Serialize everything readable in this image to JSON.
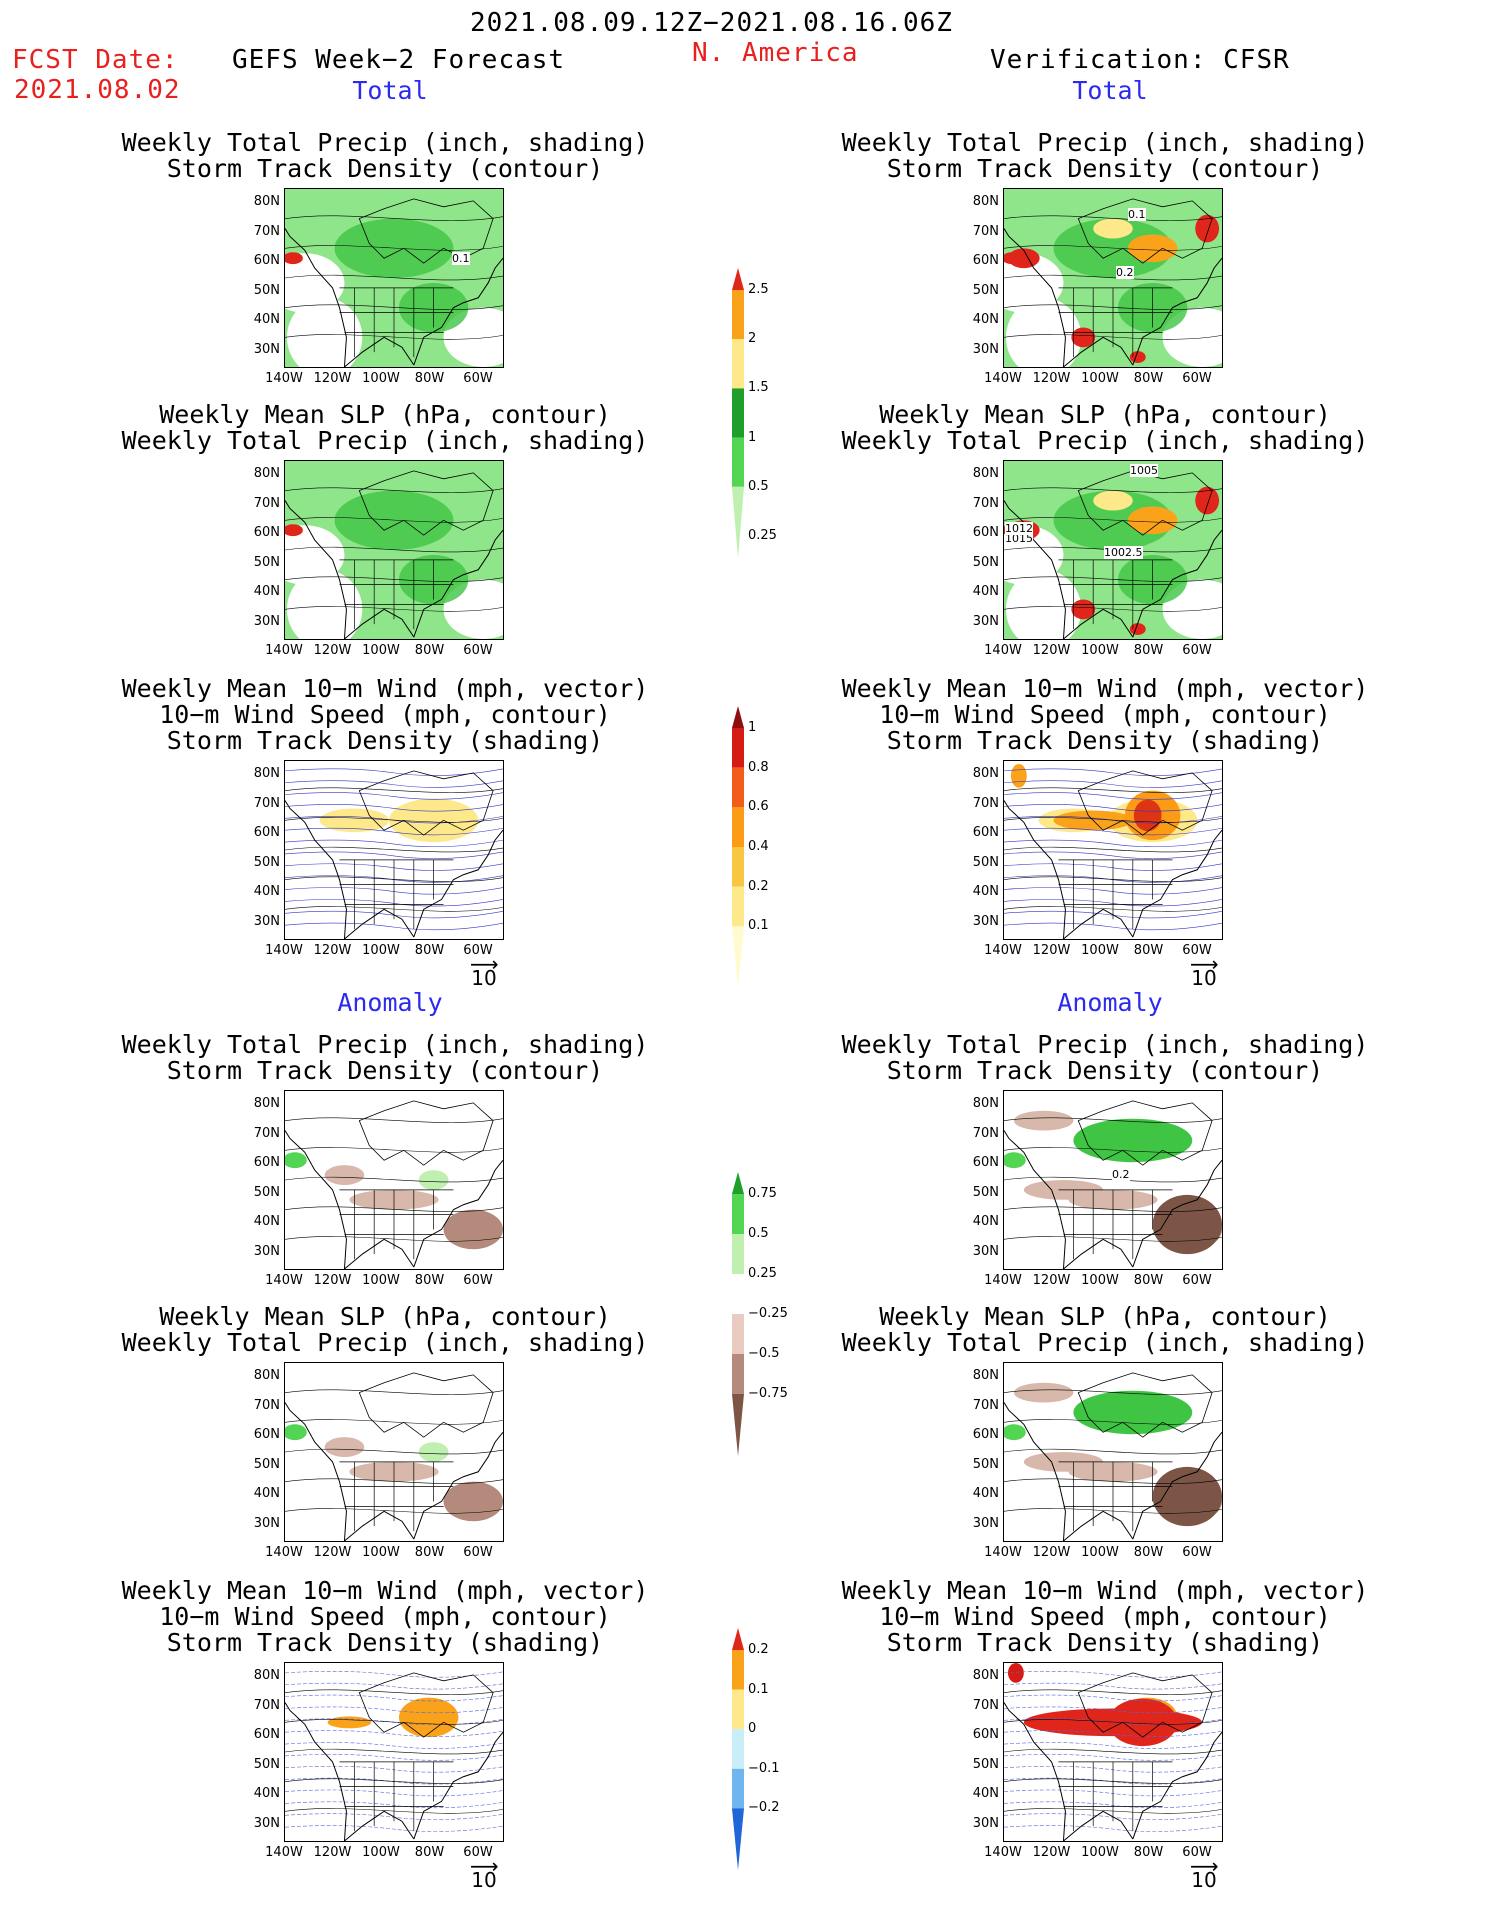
{
  "header": {
    "period": "2021.08.09.12Z−2021.08.16.06Z",
    "fcst_label": "FCST Date:",
    "fcst_date": "2021.08.02",
    "model": "GEFS Week−2 Forecast",
    "region": "N. America",
    "verification": "Verification: CFSR"
  },
  "sections": {
    "total": "Total",
    "anomaly": "Anomaly"
  },
  "titles": {
    "precip_track": "Weekly Total Precip (inch, shading)\nStorm Track Density (contour)",
    "slp_precip": "Weekly Mean SLP (hPa, contour)\nWeekly Total Precip (inch, shading)",
    "wind_track": "Weekly Mean 10−m Wind (mph, vector)\n10−m Wind Speed (mph, contour)\nStorm Track Density (shading)"
  },
  "axes": {
    "lat": [
      "80N",
      "70N",
      "60N",
      "50N",
      "40N",
      "30N"
    ],
    "lon": [
      "140W",
      "120W",
      "100W",
      "80W",
      "60W"
    ]
  },
  "vector_ref": "10",
  "map_labels": {
    "fcst_track": "0.1",
    "ver_track_a": "0.1",
    "ver_track_b": "0.2",
    "ver_slp_a": "1005",
    "ver_slp_b": "1002.5",
    "ver_slp_c": "1015",
    "ver_slp_d": "1012",
    "anom_track": "0.2"
  },
  "colorbars": {
    "precip_total": {
      "labels": [
        "2.5",
        "2",
        "1.5",
        "1",
        "0.5",
        "0.25"
      ],
      "colors": [
        "#e0251a",
        "#f9a21a",
        "#fde98a",
        "#1f9e2a",
        "#52d552",
        "#bff0b0"
      ]
    },
    "track_total": {
      "labels": [
        "1",
        "0.8",
        "0.6",
        "0.4",
        "0.2",
        "0.1"
      ],
      "colors": [
        "#8e0d10",
        "#d61a14",
        "#f25d1a",
        "#fb9b16",
        "#f8c640",
        "#fde98a",
        "#fffbd0"
      ]
    },
    "precip_anom": {
      "labels": [
        "0.75",
        "0.5",
        "0.25",
        "−0.25",
        "−0.5",
        "−0.75"
      ],
      "colors": [
        "#1f9e2a",
        "#52d552",
        "#bff0b0",
        "#ffffff",
        "#e9cbbf",
        "#b38a7c",
        "#7c5546"
      ]
    },
    "track_anom": {
      "labels": [
        "0.2",
        "0.1",
        "0",
        "−0.1",
        "−0.2"
      ],
      "colors": [
        "#e0251a",
        "#f9a21a",
        "#fde98a",
        "#c8eefa",
        "#6fb6ee",
        "#1f66d6"
      ]
    }
  }
}
